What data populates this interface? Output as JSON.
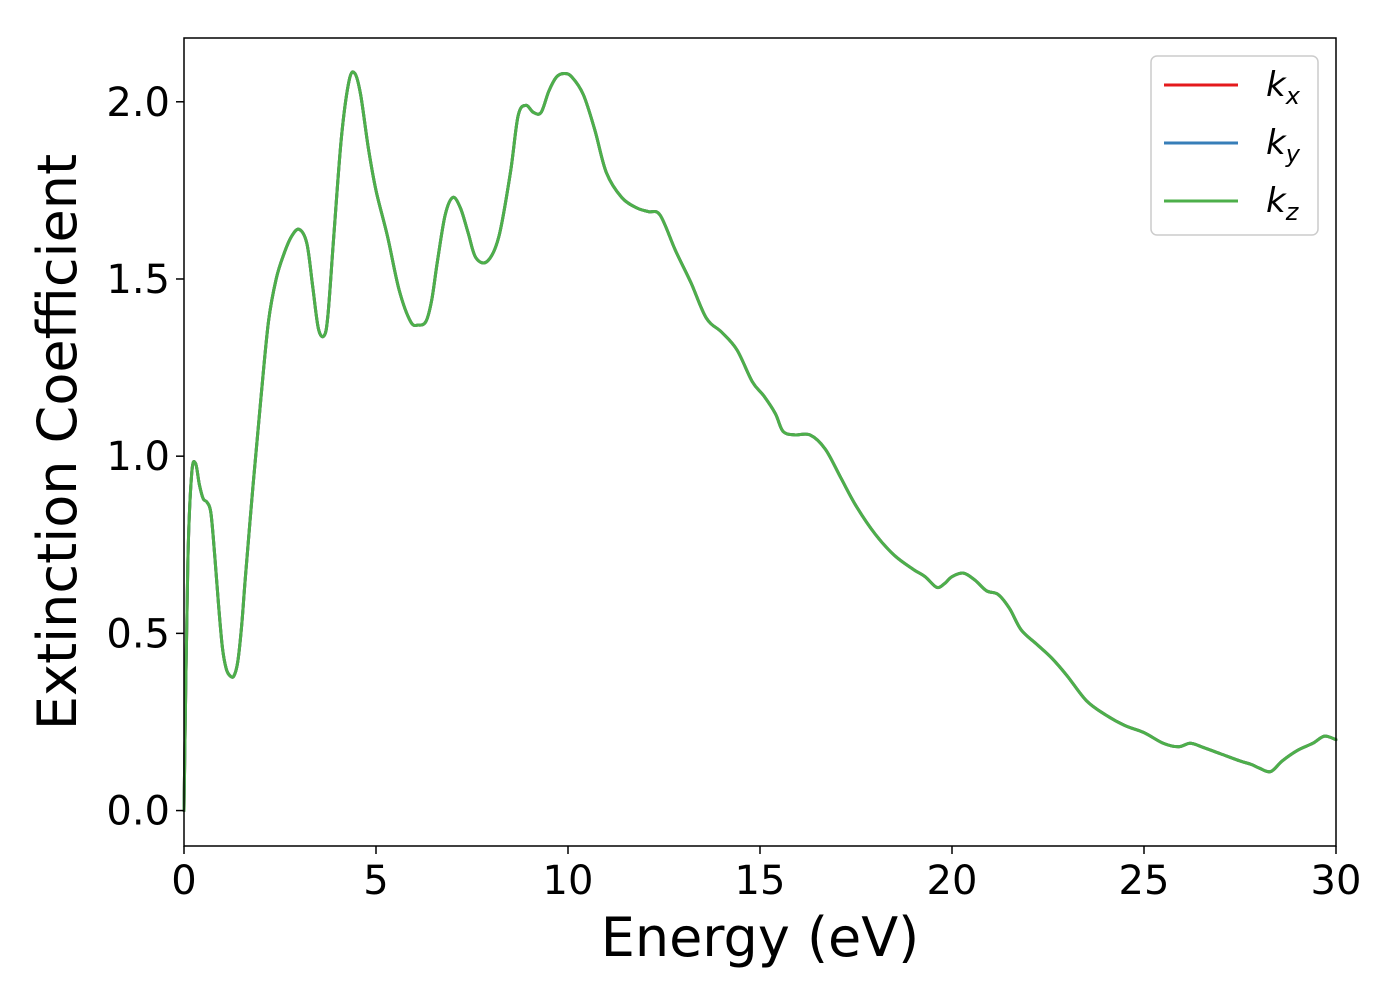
{
  "chart_data": {
    "type": "line",
    "xlabel": "Energy (eV)",
    "ylabel": "Extinction Coefficient",
    "xlim": [
      0,
      30
    ],
    "ylim": [
      -0.1,
      2.18
    ],
    "xticks": [
      0,
      5,
      10,
      15,
      20,
      25,
      30
    ],
    "xtick_labels": [
      "0",
      "5",
      "10",
      "15",
      "20",
      "25",
      "30"
    ],
    "yticks": [
      0.0,
      0.5,
      1.0,
      1.5,
      2.0
    ],
    "ytick_labels": [
      "0.0",
      "0.5",
      "1.0",
      "1.5",
      "2.0"
    ],
    "grid": false,
    "legend_position": "top-right",
    "series": [
      {
        "name": "k",
        "subscript": "x",
        "color": "#e41a1c",
        "x": [
          0,
          0.1,
          0.2,
          0.3,
          0.4,
          0.5,
          0.6,
          0.7,
          0.8,
          0.9,
          1.0,
          1.1,
          1.2,
          1.3,
          1.4,
          1.5,
          1.6,
          1.8,
          2.0,
          2.2,
          2.4,
          2.6,
          2.8,
          3.0,
          3.2,
          3.35,
          3.5,
          3.65,
          3.75,
          3.9,
          4.1,
          4.3,
          4.45,
          4.6,
          4.8,
          5.0,
          5.3,
          5.6,
          5.9,
          6.1,
          6.3,
          6.45,
          6.6,
          6.8,
          7.0,
          7.2,
          7.4,
          7.6,
          7.9,
          8.2,
          8.5,
          8.7,
          8.9,
          9.1,
          9.3,
          9.5,
          9.7,
          9.9,
          10.1,
          10.4,
          10.7,
          11.0,
          11.4,
          11.8,
          12.1,
          12.4,
          12.8,
          13.2,
          13.6,
          14.0,
          14.4,
          14.8,
          15.1,
          15.4,
          15.6,
          15.9,
          16.3,
          16.7,
          17.1,
          17.5,
          18.0,
          18.5,
          19.0,
          19.3,
          19.6,
          19.8,
          20.0,
          20.3,
          20.6,
          20.9,
          21.2,
          21.5,
          21.8,
          22.2,
          22.6,
          23.0,
          23.5,
          24.0,
          24.5,
          25.0,
          25.5,
          25.9,
          26.2,
          26.5,
          27.0,
          27.5,
          27.8,
          28.0,
          28.3,
          28.6,
          29.0,
          29.4,
          29.7,
          30.0
        ],
        "y": [
          0.0,
          0.7,
          0.95,
          0.98,
          0.92,
          0.88,
          0.87,
          0.84,
          0.72,
          0.58,
          0.46,
          0.4,
          0.38,
          0.38,
          0.42,
          0.52,
          0.66,
          0.92,
          1.16,
          1.38,
          1.5,
          1.57,
          1.62,
          1.64,
          1.6,
          1.48,
          1.36,
          1.34,
          1.4,
          1.62,
          1.9,
          2.06,
          2.08,
          2.02,
          1.87,
          1.75,
          1.62,
          1.47,
          1.38,
          1.37,
          1.38,
          1.44,
          1.55,
          1.68,
          1.73,
          1.7,
          1.63,
          1.56,
          1.55,
          1.62,
          1.8,
          1.96,
          1.99,
          1.97,
          1.97,
          2.03,
          2.07,
          2.08,
          2.07,
          2.02,
          1.92,
          1.8,
          1.73,
          1.7,
          1.69,
          1.68,
          1.58,
          1.49,
          1.39,
          1.35,
          1.3,
          1.21,
          1.17,
          1.12,
          1.07,
          1.06,
          1.06,
          1.02,
          0.94,
          0.86,
          0.78,
          0.72,
          0.68,
          0.66,
          0.63,
          0.64,
          0.66,
          0.67,
          0.65,
          0.62,
          0.61,
          0.57,
          0.51,
          0.47,
          0.43,
          0.38,
          0.31,
          0.27,
          0.24,
          0.22,
          0.19,
          0.18,
          0.19,
          0.18,
          0.16,
          0.14,
          0.13,
          0.12,
          0.11,
          0.14,
          0.17,
          0.19,
          0.21,
          0.2
        ]
      },
      {
        "name": "k",
        "subscript": "y",
        "color": "#377eb8",
        "x": [
          0,
          0.1,
          0.2,
          0.3,
          0.4,
          0.5,
          0.6,
          0.7,
          0.8,
          0.9,
          1.0,
          1.1,
          1.2,
          1.3,
          1.4,
          1.5,
          1.6,
          1.8,
          2.0,
          2.2,
          2.4,
          2.6,
          2.8,
          3.0,
          3.2,
          3.35,
          3.5,
          3.65,
          3.75,
          3.9,
          4.1,
          4.3,
          4.45,
          4.6,
          4.8,
          5.0,
          5.3,
          5.6,
          5.9,
          6.1,
          6.3,
          6.45,
          6.6,
          6.8,
          7.0,
          7.2,
          7.4,
          7.6,
          7.9,
          8.2,
          8.5,
          8.7,
          8.9,
          9.1,
          9.3,
          9.5,
          9.7,
          9.9,
          10.1,
          10.4,
          10.7,
          11.0,
          11.4,
          11.8,
          12.1,
          12.4,
          12.8,
          13.2,
          13.6,
          14.0,
          14.4,
          14.8,
          15.1,
          15.4,
          15.6,
          15.9,
          16.3,
          16.7,
          17.1,
          17.5,
          18.0,
          18.5,
          19.0,
          19.3,
          19.6,
          19.8,
          20.0,
          20.3,
          20.6,
          20.9,
          21.2,
          21.5,
          21.8,
          22.2,
          22.6,
          23.0,
          23.5,
          24.0,
          24.5,
          25.0,
          25.5,
          25.9,
          26.2,
          26.5,
          27.0,
          27.5,
          27.8,
          28.0,
          28.3,
          28.6,
          29.0,
          29.4,
          29.7,
          30.0
        ],
        "y": [
          0.0,
          0.7,
          0.95,
          0.98,
          0.92,
          0.88,
          0.87,
          0.84,
          0.72,
          0.58,
          0.46,
          0.4,
          0.38,
          0.38,
          0.42,
          0.52,
          0.66,
          0.92,
          1.16,
          1.38,
          1.5,
          1.57,
          1.62,
          1.64,
          1.6,
          1.48,
          1.36,
          1.34,
          1.4,
          1.62,
          1.9,
          2.06,
          2.08,
          2.02,
          1.87,
          1.75,
          1.62,
          1.47,
          1.38,
          1.37,
          1.38,
          1.44,
          1.55,
          1.68,
          1.73,
          1.7,
          1.63,
          1.56,
          1.55,
          1.62,
          1.8,
          1.96,
          1.99,
          1.97,
          1.97,
          2.03,
          2.07,
          2.08,
          2.07,
          2.02,
          1.92,
          1.8,
          1.73,
          1.7,
          1.69,
          1.68,
          1.58,
          1.49,
          1.39,
          1.35,
          1.3,
          1.21,
          1.17,
          1.12,
          1.07,
          1.06,
          1.06,
          1.02,
          0.94,
          0.86,
          0.78,
          0.72,
          0.68,
          0.66,
          0.63,
          0.64,
          0.66,
          0.67,
          0.65,
          0.62,
          0.61,
          0.57,
          0.51,
          0.47,
          0.43,
          0.38,
          0.31,
          0.27,
          0.24,
          0.22,
          0.19,
          0.18,
          0.19,
          0.18,
          0.16,
          0.14,
          0.13,
          0.12,
          0.11,
          0.14,
          0.17,
          0.19,
          0.21,
          0.2
        ]
      },
      {
        "name": "k",
        "subscript": "z",
        "color": "#4daf4a",
        "x": [
          0,
          0.1,
          0.2,
          0.3,
          0.4,
          0.5,
          0.6,
          0.7,
          0.8,
          0.9,
          1.0,
          1.1,
          1.2,
          1.3,
          1.4,
          1.5,
          1.6,
          1.8,
          2.0,
          2.2,
          2.4,
          2.6,
          2.8,
          3.0,
          3.2,
          3.35,
          3.5,
          3.65,
          3.75,
          3.9,
          4.1,
          4.3,
          4.45,
          4.6,
          4.8,
          5.0,
          5.3,
          5.6,
          5.9,
          6.1,
          6.3,
          6.45,
          6.6,
          6.8,
          7.0,
          7.2,
          7.4,
          7.6,
          7.9,
          8.2,
          8.5,
          8.7,
          8.9,
          9.1,
          9.3,
          9.5,
          9.7,
          9.9,
          10.1,
          10.4,
          10.7,
          11.0,
          11.4,
          11.8,
          12.1,
          12.4,
          12.8,
          13.2,
          13.6,
          14.0,
          14.4,
          14.8,
          15.1,
          15.4,
          15.6,
          15.9,
          16.3,
          16.7,
          17.1,
          17.5,
          18.0,
          18.5,
          19.0,
          19.3,
          19.6,
          19.8,
          20.0,
          20.3,
          20.6,
          20.9,
          21.2,
          21.5,
          21.8,
          22.2,
          22.6,
          23.0,
          23.5,
          24.0,
          24.5,
          25.0,
          25.5,
          25.9,
          26.2,
          26.5,
          27.0,
          27.5,
          27.8,
          28.0,
          28.3,
          28.6,
          29.0,
          29.4,
          29.7,
          30.0
        ],
        "y": [
          0.0,
          0.7,
          0.95,
          0.98,
          0.92,
          0.88,
          0.87,
          0.84,
          0.72,
          0.58,
          0.46,
          0.4,
          0.38,
          0.38,
          0.42,
          0.52,
          0.66,
          0.92,
          1.16,
          1.38,
          1.5,
          1.57,
          1.62,
          1.64,
          1.6,
          1.48,
          1.36,
          1.34,
          1.4,
          1.62,
          1.9,
          2.06,
          2.08,
          2.02,
          1.87,
          1.75,
          1.62,
          1.47,
          1.38,
          1.37,
          1.38,
          1.44,
          1.55,
          1.68,
          1.73,
          1.7,
          1.63,
          1.56,
          1.55,
          1.62,
          1.8,
          1.96,
          1.99,
          1.97,
          1.97,
          2.03,
          2.07,
          2.08,
          2.07,
          2.02,
          1.92,
          1.8,
          1.73,
          1.7,
          1.69,
          1.68,
          1.58,
          1.49,
          1.39,
          1.35,
          1.3,
          1.21,
          1.17,
          1.12,
          1.07,
          1.06,
          1.06,
          1.02,
          0.94,
          0.86,
          0.78,
          0.72,
          0.68,
          0.66,
          0.63,
          0.64,
          0.66,
          0.67,
          0.65,
          0.62,
          0.61,
          0.57,
          0.51,
          0.47,
          0.43,
          0.38,
          0.31,
          0.27,
          0.24,
          0.22,
          0.19,
          0.18,
          0.19,
          0.18,
          0.16,
          0.14,
          0.13,
          0.12,
          0.11,
          0.14,
          0.17,
          0.19,
          0.21,
          0.2
        ]
      }
    ]
  }
}
